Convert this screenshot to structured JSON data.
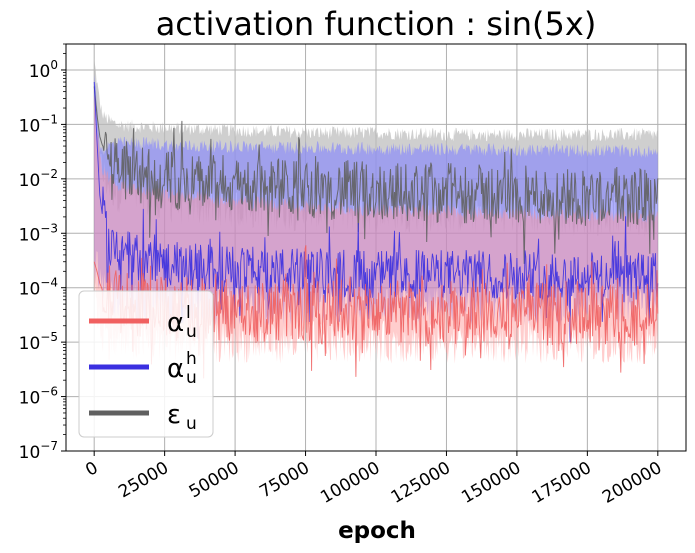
{
  "chart_data": {
    "type": "area",
    "title": "activation function : sin(5x)",
    "xlabel": "epoch",
    "ylabel": "",
    "xlim": [
      -10000,
      210000
    ],
    "ylim": [
      1e-07,
      3
    ],
    "yscale": "log",
    "grid": true,
    "legend_position": "lower-left",
    "x_ticks": [
      {
        "value": 0,
        "label": "0"
      },
      {
        "value": 25000,
        "label": "25000"
      },
      {
        "value": 50000,
        "label": "50000"
      },
      {
        "value": 75000,
        "label": "75000"
      },
      {
        "value": 100000,
        "label": "100000"
      },
      {
        "value": 125000,
        "label": "125000"
      },
      {
        "value": 150000,
        "label": "150000"
      },
      {
        "value": 175000,
        "label": "175000"
      },
      {
        "value": 200000,
        "label": "200000"
      }
    ],
    "y_ticks": [
      {
        "value": 1,
        "base": "10",
        "exp": "0"
      },
      {
        "value": 0.1,
        "base": "10",
        "exp": "−1"
      },
      {
        "value": 0.01,
        "base": "10",
        "exp": "−2"
      },
      {
        "value": 0.001,
        "base": "10",
        "exp": "−3"
      },
      {
        "value": 0.0001,
        "base": "10",
        "exp": "−4"
      },
      {
        "value": 1e-05,
        "base": "10",
        "exp": "−5"
      },
      {
        "value": 1e-06,
        "base": "10",
        "exp": "−6"
      },
      {
        "value": 1e-07,
        "base": "10",
        "exp": "−7"
      }
    ],
    "x": [
      0,
      1000,
      2000,
      3000,
      5000,
      8000,
      12000,
      20000,
      30000,
      45000,
      60000,
      80000,
      100000,
      125000,
      150000,
      175000,
      200000
    ],
    "series": [
      {
        "name": "ε_u",
        "symbol": "ε",
        "sub": "u",
        "sup": "",
        "color": "#606060",
        "band_color": "#bbbbbb",
        "line": [
          0.5,
          0.15,
          0.06,
          0.04,
          0.025,
          0.018,
          0.014,
          0.011,
          0.009,
          0.008,
          0.007,
          0.0065,
          0.006,
          0.0055,
          0.005,
          0.0048,
          0.0045
        ],
        "band_upper": [
          1.5,
          0.6,
          0.25,
          0.15,
          0.12,
          0.1,
          0.095,
          0.09,
          0.085,
          0.08,
          0.075,
          0.07,
          0.07,
          0.065,
          0.065,
          0.065,
          0.065
        ],
        "band_lower": [
          0.2,
          0.05,
          0.02,
          0.012,
          0.008,
          0.006,
          0.005,
          0.004,
          0.0035,
          0.003,
          0.0028,
          0.0026,
          0.0025,
          0.0024,
          0.0023,
          0.0022,
          0.0021
        ]
      },
      {
        "name": "α_u^h",
        "symbol": "α",
        "sub": "u",
        "sup": "h",
        "color": "#3a2fe0",
        "band_color": "#8080ff",
        "line": [
          0.6,
          0.05,
          0.005,
          0.002,
          0.0008,
          0.0005,
          0.0004,
          0.0003,
          0.00025,
          0.00022,
          0.0002,
          0.00019,
          0.00018,
          0.00018,
          0.00017,
          0.00017,
          0.00016
        ],
        "band_upper": [
          1.0,
          0.2,
          0.04,
          0.035,
          0.04,
          0.045,
          0.045,
          0.045,
          0.04,
          0.04,
          0.038,
          0.037,
          0.036,
          0.035,
          0.034,
          0.033,
          0.032
        ],
        "band_lower": [
          0.0003,
          0.0002,
          0.0001,
          8e-05,
          7e-05,
          6e-05,
          5e-05,
          5e-05,
          5e-05,
          5e-05,
          5e-05,
          5e-05,
          5e-05,
          5e-05,
          5e-05,
          5e-05,
          5e-05
        ]
      },
      {
        "name": "α_u^l",
        "symbol": "α",
        "sub": "u",
        "sup": "l",
        "color": "#f06060",
        "band_color": "#ff9090",
        "line": [
          0.0003,
          0.0002,
          0.00012,
          9e-05,
          7e-05,
          6e-05,
          5e-05,
          4.5e-05,
          4e-05,
          4e-05,
          3.8e-05,
          3.6e-05,
          3.5e-05,
          3.5e-05,
          3.4e-05,
          3.4e-05,
          3.3e-05
        ],
        "band_upper": [
          0.4,
          0.1,
          0.03,
          0.015,
          0.01,
          0.008,
          0.007,
          0.006,
          0.005,
          0.004,
          0.0035,
          0.003,
          0.0027,
          0.0025,
          0.0023,
          0.0022,
          0.002
        ],
        "band_lower": [
          0.0001,
          4e-05,
          2e-05,
          1.5e-05,
          1.2e-05,
          1e-05,
          1e-05,
          1e-05,
          1e-05,
          1e-05,
          1e-05,
          1e-05,
          1e-05,
          1e-05,
          1e-05,
          1e-05,
          1e-05
        ]
      }
    ]
  }
}
